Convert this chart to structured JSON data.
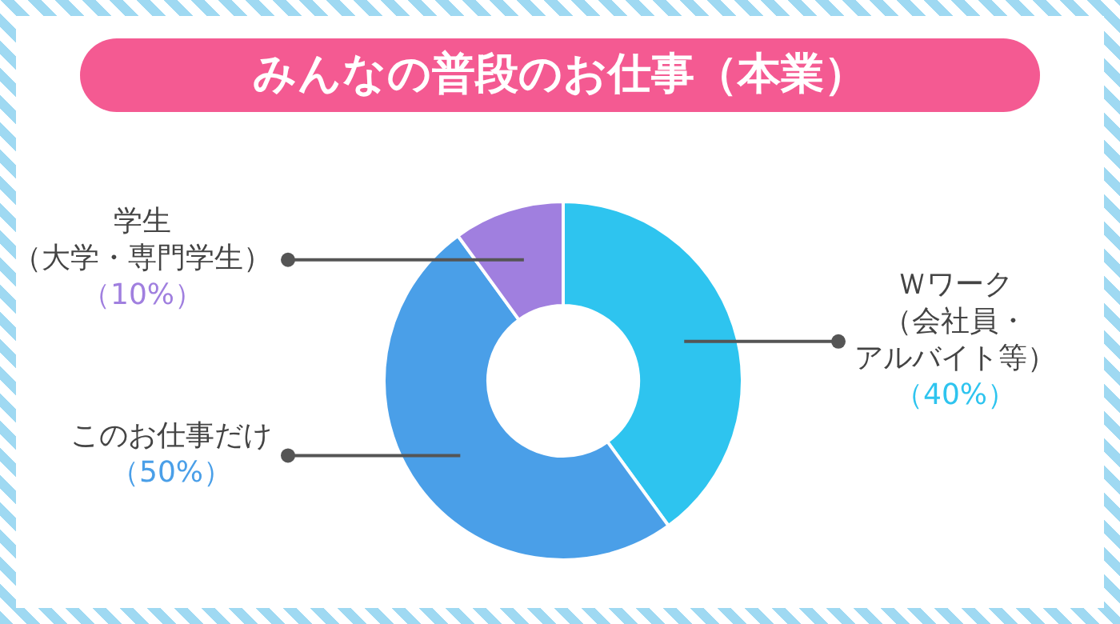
{
  "chart_data": {
    "type": "donut",
    "title": "みんなの普段のお仕事（本業）",
    "categories": [
      "Ｗワーク（会社員・アルバイト等）",
      "このお仕事だけ",
      "学生（大学・専門学生）"
    ],
    "values": [
      40,
      50,
      10
    ],
    "colors": [
      "#2ec4ef",
      "#4a9fe8",
      "#a07fdf"
    ],
    "value_labels": [
      "（40%）",
      "（50%）",
      "（10%）"
    ],
    "legend": false
  }
}
